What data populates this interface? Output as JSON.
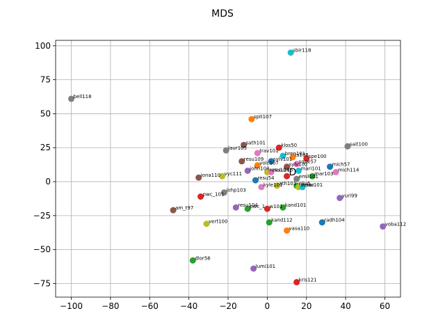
{
  "chart_data": {
    "type": "scatter",
    "title": "MDS",
    "xlabel": "",
    "ylabel": "",
    "xlim": [
      -108,
      68
    ],
    "ylim": [
      -85,
      104
    ],
    "xticks": [
      -100,
      -80,
      -60,
      -40,
      -20,
      0,
      20,
      40,
      60
    ],
    "yticks": [
      -75,
      -50,
      -25,
      0,
      25,
      50,
      75,
      100
    ],
    "grid": true,
    "points": [
      {
        "label": "sbir118",
        "x": 12,
        "y": 95,
        "color": "#17becf"
      },
      {
        "label": "bell118",
        "x": -100,
        "y": 61,
        "color": "#7f7f7f"
      },
      {
        "label": "spit107",
        "x": -8,
        "y": 46,
        "color": "#ff7f0e"
      },
      {
        "label": "sath101",
        "x": -12,
        "y": 27,
        "color": "#8c564b"
      },
      {
        "label": "klos50",
        "x": 6,
        "y": 25,
        "color": "#d62728"
      },
      {
        "label": "laur105",
        "x": -21,
        "y": 23,
        "color": "#7f7f7f"
      },
      {
        "label": "sait100",
        "x": 41,
        "y": 26,
        "color": "#7f7f7f"
      },
      {
        "label": "trav101",
        "x": -5,
        "y": 21,
        "color": "#e377c2"
      },
      {
        "label": "bren101",
        "x": 8,
        "y": 19,
        "color": "#17becf"
      },
      {
        "label": "ts108",
        "x": 13,
        "y": 18,
        "color": "#ff7f0e"
      },
      {
        "label": "spe100",
        "x": 20,
        "y": 17,
        "color": "#d62728"
      },
      {
        "label": "sylv101",
        "x": 2,
        "y": 15,
        "color": "#1f77b4"
      },
      {
        "label": "resu109",
        "x": -13,
        "y": 15,
        "color": "#8c564b"
      },
      {
        "label": "mich57",
        "x": 32,
        "y": 11,
        "color": "#1f77b4"
      },
      {
        "label": "sqpe57",
        "x": 15,
        "y": 13,
        "color": "#e377c2"
      },
      {
        "label": "volc107",
        "x": -5,
        "y": 12,
        "color": "#ff7f0e"
      },
      {
        "label": "sylv102",
        "x": 10,
        "y": 11,
        "color": "#8c564b"
      },
      {
        "label": "john104",
        "x": -10,
        "y": 8,
        "color": "#9467bd"
      },
      {
        "label": "resu114",
        "x": 0,
        "y": 7,
        "color": "#bcbd22"
      },
      {
        "label": "resu115",
        "x": 2,
        "y": 7,
        "color": "#e377c2"
      },
      {
        "label": "mari101",
        "x": 16,
        "y": 8,
        "color": "#17becf"
      },
      {
        "label": "mar103",
        "x": 23,
        "y": 4,
        "color": "#2ca02c"
      },
      {
        "label": "mich114",
        "x": 35,
        "y": 7,
        "color": "#e377c2"
      },
      {
        "label": "iona110",
        "x": -35,
        "y": 3,
        "color": "#8c564b"
      },
      {
        "label": "vyc111",
        "x": -23,
        "y": 4,
        "color": "#bcbd22"
      },
      {
        "label": "resu54",
        "x": -6,
        "y": 1,
        "color": "#1f77b4"
      },
      {
        "label": "D",
        "x": 10,
        "y": 4,
        "color": "#d62728"
      },
      {
        "label": "emil101",
        "x": 15,
        "y": 2,
        "color": "#7f7f7f"
      },
      {
        "label": "kyle101",
        "x": -3,
        "y": -4,
        "color": "#e377c2"
      },
      {
        "label": "ath101",
        "x": 5,
        "y": -3,
        "color": "#bcbd22"
      },
      {
        "label": "eliu5",
        "x": 15,
        "y": -3,
        "color": "#2ca02c"
      },
      {
        "label": "deisu",
        "x": 16,
        "y": -4,
        "color": "#bcbd22"
      },
      {
        "label": "isar101",
        "x": 18,
        "y": -4,
        "color": "#17becf"
      },
      {
        "label": "iohp103",
        "x": -22,
        "y": -8,
        "color": "#7f7f7f"
      },
      {
        "label": "yuri99",
        "x": 37,
        "y": -12,
        "color": "#9467bd"
      },
      {
        "label": "pwc_101",
        "x": -34,
        "y": -11,
        "color": "#d62728"
      },
      {
        "label": "am_t97",
        "x": -48,
        "y": -21,
        "color": "#8c564b"
      },
      {
        "label": "resu104",
        "x": -16,
        "y": -19,
        "color": "#9467bd"
      },
      {
        "label": "pwc_1",
        "x": -10,
        "y": -20,
        "color": "#2ca02c"
      },
      {
        "label": "w101",
        "x": 0,
        "y": -20,
        "color": "#d62728"
      },
      {
        "label": "kand101",
        "x": 8,
        "y": -19,
        "color": "#2ca02c"
      },
      {
        "label": "vert100",
        "x": -31,
        "y": -31,
        "color": "#bcbd22"
      },
      {
        "label": "kand112",
        "x": 1,
        "y": -30,
        "color": "#2ca02c"
      },
      {
        "label": "vasa110",
        "x": 10,
        "y": -36,
        "color": "#ff7f0e"
      },
      {
        "label": "radh104",
        "x": 28,
        "y": -30,
        "color": "#1f77b4"
      },
      {
        "label": "voba112",
        "x": 59,
        "y": -33,
        "color": "#9467bd"
      },
      {
        "label": "dlor56",
        "x": -38,
        "y": -58,
        "color": "#2ca02c"
      },
      {
        "label": "lumi101",
        "x": -7,
        "y": -64,
        "color": "#9467bd"
      },
      {
        "label": "kris121",
        "x": 15,
        "y": -74,
        "color": "#d62728"
      }
    ]
  }
}
